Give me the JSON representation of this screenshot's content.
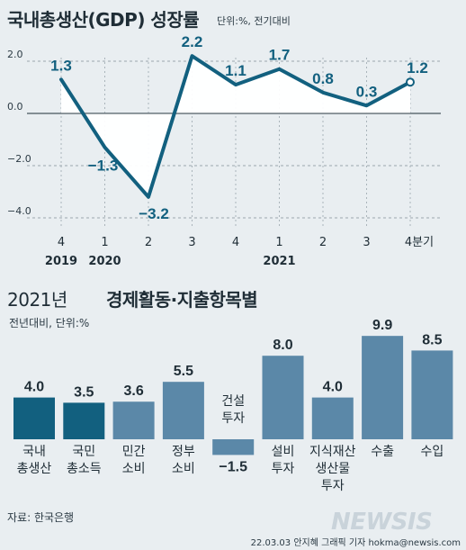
{
  "chart_data": [
    {
      "type": "line",
      "title": "국내총생산(GDP) 성장률",
      "unit_note": "단위:%, 전기대비",
      "x": [
        "4",
        "1",
        "2",
        "3",
        "4",
        "1",
        "2",
        "3",
        "4분기"
      ],
      "year_labels": [
        {
          "index": 0,
          "label": "2019"
        },
        {
          "index": 1,
          "label": "2020"
        },
        {
          "index": 5,
          "label": "2021"
        }
      ],
      "values": [
        1.3,
        -1.3,
        -3.2,
        2.2,
        1.1,
        1.7,
        0.8,
        0.3,
        1.2
      ],
      "value_labels": [
        "1.3",
        "−1.3",
        "−3.2",
        "2.2",
        "1.1",
        "1.7",
        "0.8",
        "0.3",
        "1.2"
      ],
      "ylim": [
        -4.0,
        2.0
      ],
      "y_ticks": [
        2.0,
        0.0,
        -2.0,
        -4.0
      ],
      "y_tick_labels": [
        "2.0",
        "0.0",
        "−2.0",
        "−4.0"
      ],
      "grid": true
    },
    {
      "type": "bar",
      "title_year": "2021년",
      "title": "경제활동·지출항목별",
      "unit_note": "전년대비, 단위:%",
      "categories": [
        "국내\n총생산",
        "국민\n총소득",
        "민간\n소비",
        "정부\n소비",
        "건설\n투자",
        "설비\n투자",
        "지식재산\n생산물\n투자",
        "수출",
        "수입"
      ],
      "values": [
        4.0,
        3.5,
        3.6,
        5.5,
        -1.5,
        8.0,
        4.0,
        9.9,
        8.5
      ],
      "value_labels": [
        "4.0",
        "3.5",
        "3.6",
        "5.5",
        "−1.5",
        "8.0",
        "4.0",
        "9.9",
        "8.5"
      ],
      "highlight_indices": [
        0,
        1
      ]
    }
  ],
  "source": "자료: 한국은행",
  "credit": "22.03.03 안지혜 그래픽 기자 hokma@newsis.com",
  "watermark": "NEWSIS",
  "colors": {
    "line": "#12607f",
    "area": "#ffffff",
    "bar": "#5b88a8",
    "bar_highlight": "#12607f",
    "text": "#1f2d36",
    "background": "#e9eef1"
  }
}
